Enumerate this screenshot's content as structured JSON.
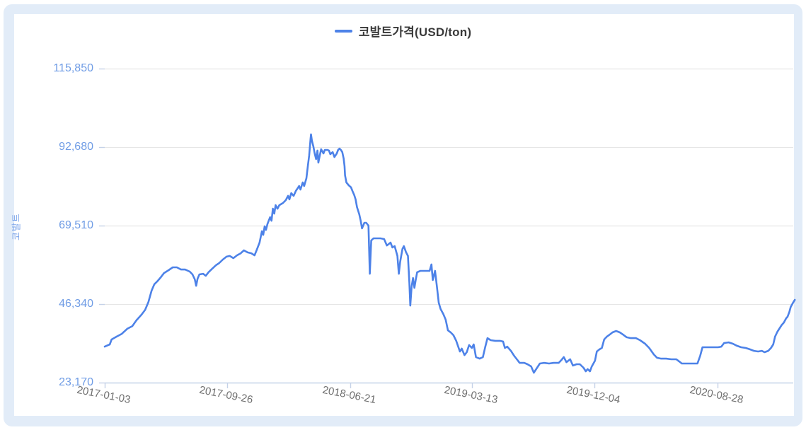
{
  "page": {
    "outer_background": "#ffffff",
    "frame_background": "#e2ecf8",
    "card_background": "#ffffff"
  },
  "legend": {
    "label": "코발트가격(USD/ton)",
    "marker_color": "#4d82e8"
  },
  "colors": {
    "series_line": "#4d82e8",
    "y_label": "#6f9ce5",
    "y_title": "#7ea6ea",
    "x_label": "#6f6f6f",
    "gridline": "#e6e6e6",
    "axis_line": "#c5d2e8"
  },
  "chart_data": {
    "type": "line",
    "title": "코발트가격(USD/ton)",
    "legend_position": "top-center",
    "grid": "horizontal-only",
    "y_axis": {
      "title": "코발트",
      "unit": "USD/ton",
      "range": [
        23170,
        115850
      ],
      "ticks": [
        115850,
        92680,
        69510,
        46340,
        23170
      ],
      "tick_labels": [
        "115,850",
        "92,680",
        "69,510",
        "46,340",
        "23,170"
      ]
    },
    "x_axis": {
      "unit": "days since 2017-01-03",
      "tick_days": [
        0,
        266,
        534,
        799,
        1065,
        1333
      ],
      "tick_labels": [
        "2017-01-03",
        "2017-09-26",
        "2018-06-21",
        "2019-03-13",
        "2019-12-04",
        "2020-08-28"
      ]
    },
    "series": [
      {
        "name": "코발트가격(USD/ton)",
        "color": "#4d82e8",
        "points_day_value": [
          [
            0,
            33800
          ],
          [
            11,
            34450
          ],
          [
            15,
            35900
          ],
          [
            26,
            36750
          ],
          [
            37,
            37550
          ],
          [
            49,
            39050
          ],
          [
            60,
            39850
          ],
          [
            69,
            41550
          ],
          [
            80,
            43200
          ],
          [
            88,
            44650
          ],
          [
            95,
            46950
          ],
          [
            102,
            50300
          ],
          [
            108,
            52200
          ],
          [
            114,
            53000
          ],
          [
            122,
            54250
          ],
          [
            129,
            55500
          ],
          [
            139,
            56350
          ],
          [
            148,
            57200
          ],
          [
            157,
            57200
          ],
          [
            166,
            56550
          ],
          [
            175,
            56550
          ],
          [
            185,
            55950
          ],
          [
            191,
            55100
          ],
          [
            196,
            53650
          ],
          [
            199,
            51750
          ],
          [
            202,
            53850
          ],
          [
            206,
            55100
          ],
          [
            214,
            55300
          ],
          [
            220,
            54700
          ],
          [
            226,
            55750
          ],
          [
            234,
            56800
          ],
          [
            242,
            57800
          ],
          [
            249,
            58450
          ],
          [
            257,
            59500
          ],
          [
            265,
            60350
          ],
          [
            272,
            60550
          ],
          [
            280,
            59900
          ],
          [
            288,
            60750
          ],
          [
            296,
            61350
          ],
          [
            303,
            62200
          ],
          [
            311,
            61600
          ],
          [
            319,
            61350
          ],
          [
            326,
            60750
          ],
          [
            331,
            62400
          ],
          [
            337,
            64500
          ],
          [
            342,
            67850
          ],
          [
            345,
            66800
          ],
          [
            348,
            69300
          ],
          [
            351,
            68250
          ],
          [
            354,
            69950
          ],
          [
            360,
            72000
          ],
          [
            363,
            70950
          ],
          [
            366,
            74500
          ],
          [
            369,
            73050
          ],
          [
            372,
            75550
          ],
          [
            376,
            74500
          ],
          [
            380,
            75550
          ],
          [
            388,
            76200
          ],
          [
            394,
            77000
          ],
          [
            399,
            78300
          ],
          [
            402,
            77250
          ],
          [
            406,
            79100
          ],
          [
            411,
            78300
          ],
          [
            416,
            79750
          ],
          [
            420,
            80550
          ],
          [
            423,
            81200
          ],
          [
            426,
            80150
          ],
          [
            431,
            82250
          ],
          [
            434,
            81200
          ],
          [
            439,
            83500
          ],
          [
            442,
            87050
          ],
          [
            445,
            90200
          ],
          [
            448,
            95200
          ],
          [
            449,
            96450
          ],
          [
            451,
            94550
          ],
          [
            454,
            92900
          ],
          [
            457,
            90800
          ],
          [
            460,
            89150
          ],
          [
            463,
            91650
          ],
          [
            465,
            88100
          ],
          [
            468,
            90200
          ],
          [
            471,
            92050
          ],
          [
            476,
            90800
          ],
          [
            479,
            91850
          ],
          [
            485,
            91850
          ],
          [
            488,
            91650
          ],
          [
            491,
            90600
          ],
          [
            496,
            91200
          ],
          [
            500,
            89750
          ],
          [
            505,
            90800
          ],
          [
            508,
            91850
          ],
          [
            511,
            92250
          ],
          [
            514,
            91850
          ],
          [
            517,
            91200
          ],
          [
            520,
            89350
          ],
          [
            522,
            87050
          ],
          [
            523,
            84350
          ],
          [
            526,
            82250
          ],
          [
            531,
            81400
          ],
          [
            536,
            80800
          ],
          [
            539,
            79750
          ],
          [
            543,
            78500
          ],
          [
            546,
            77250
          ],
          [
            549,
            74950
          ],
          [
            554,
            72850
          ],
          [
            557,
            70950
          ],
          [
            560,
            68700
          ],
          [
            565,
            70350
          ],
          [
            569,
            70350
          ],
          [
            574,
            69500
          ],
          [
            577,
            55300
          ],
          [
            580,
            65100
          ],
          [
            585,
            65750
          ],
          [
            593,
            65750
          ],
          [
            600,
            65750
          ],
          [
            608,
            65550
          ],
          [
            614,
            63650
          ],
          [
            622,
            64500
          ],
          [
            626,
            63050
          ],
          [
            631,
            63450
          ],
          [
            637,
            60550
          ],
          [
            640,
            55300
          ],
          [
            643,
            58850
          ],
          [
            648,
            62600
          ],
          [
            651,
            63450
          ],
          [
            656,
            61600
          ],
          [
            660,
            60550
          ],
          [
            663,
            52600
          ],
          [
            665,
            45900
          ],
          [
            668,
            51550
          ],
          [
            671,
            54050
          ],
          [
            674,
            51150
          ],
          [
            677,
            53650
          ],
          [
            680,
            55750
          ],
          [
            687,
            56150
          ],
          [
            696,
            56150
          ],
          [
            707,
            56150
          ],
          [
            711,
            58050
          ],
          [
            714,
            53450
          ],
          [
            719,
            56150
          ],
          [
            723,
            51550
          ],
          [
            727,
            46750
          ],
          [
            731,
            44900
          ],
          [
            737,
            43400
          ],
          [
            742,
            41750
          ],
          [
            747,
            38600
          ],
          [
            753,
            38000
          ],
          [
            759,
            37150
          ],
          [
            765,
            35500
          ],
          [
            773,
            32350
          ],
          [
            777,
            33200
          ],
          [
            783,
            31300
          ],
          [
            788,
            32150
          ],
          [
            793,
            34250
          ],
          [
            799,
            33400
          ],
          [
            803,
            34450
          ],
          [
            808,
            30700
          ],
          [
            816,
            30250
          ],
          [
            823,
            30700
          ],
          [
            828,
            33600
          ],
          [
            833,
            36300
          ],
          [
            840,
            35700
          ],
          [
            850,
            35500
          ],
          [
            860,
            35500
          ],
          [
            867,
            35300
          ],
          [
            871,
            33400
          ],
          [
            876,
            33800
          ],
          [
            884,
            32550
          ],
          [
            891,
            31100
          ],
          [
            897,
            30050
          ],
          [
            903,
            29000
          ],
          [
            913,
            29000
          ],
          [
            920,
            28600
          ],
          [
            928,
            27950
          ],
          [
            934,
            26100
          ],
          [
            940,
            27350
          ],
          [
            947,
            28800
          ],
          [
            956,
            29000
          ],
          [
            967,
            28800
          ],
          [
            977,
            29000
          ],
          [
            988,
            29000
          ],
          [
            994,
            29850
          ],
          [
            999,
            30700
          ],
          [
            1005,
            29200
          ],
          [
            1013,
            30050
          ],
          [
            1019,
            28200
          ],
          [
            1027,
            28600
          ],
          [
            1034,
            28600
          ],
          [
            1042,
            27550
          ],
          [
            1047,
            26500
          ],
          [
            1051,
            27150
          ],
          [
            1056,
            26500
          ],
          [
            1060,
            27950
          ],
          [
            1067,
            29650
          ],
          [
            1071,
            32350
          ],
          [
            1077,
            33000
          ],
          [
            1082,
            33400
          ],
          [
            1087,
            35900
          ],
          [
            1093,
            36750
          ],
          [
            1099,
            37350
          ],
          [
            1105,
            38000
          ],
          [
            1113,
            38400
          ],
          [
            1121,
            38000
          ],
          [
            1128,
            37350
          ],
          [
            1136,
            36550
          ],
          [
            1145,
            36300
          ],
          [
            1156,
            36300
          ],
          [
            1165,
            35700
          ],
          [
            1176,
            34650
          ],
          [
            1185,
            33400
          ],
          [
            1195,
            31500
          ],
          [
            1202,
            30500
          ],
          [
            1211,
            30250
          ],
          [
            1222,
            30250
          ],
          [
            1233,
            30050
          ],
          [
            1244,
            30050
          ],
          [
            1250,
            29450
          ],
          [
            1256,
            28800
          ],
          [
            1267,
            28800
          ],
          [
            1279,
            28800
          ],
          [
            1290,
            28800
          ],
          [
            1296,
            31100
          ],
          [
            1301,
            33600
          ],
          [
            1312,
            33600
          ],
          [
            1324,
            33600
          ],
          [
            1335,
            33600
          ],
          [
            1342,
            33800
          ],
          [
            1348,
            34850
          ],
          [
            1358,
            35050
          ],
          [
            1367,
            34650
          ],
          [
            1376,
            34050
          ],
          [
            1385,
            33600
          ],
          [
            1395,
            33400
          ],
          [
            1404,
            33000
          ],
          [
            1413,
            32550
          ],
          [
            1422,
            32350
          ],
          [
            1430,
            32550
          ],
          [
            1436,
            32150
          ],
          [
            1444,
            32550
          ],
          [
            1450,
            33400
          ],
          [
            1455,
            34450
          ],
          [
            1459,
            36750
          ],
          [
            1464,
            38200
          ],
          [
            1469,
            39250
          ],
          [
            1473,
            40100
          ],
          [
            1478,
            40900
          ],
          [
            1483,
            42150
          ],
          [
            1486,
            42600
          ],
          [
            1490,
            44050
          ],
          [
            1493,
            45500
          ],
          [
            1498,
            46750
          ],
          [
            1502,
            47600
          ]
        ]
      }
    ]
  }
}
